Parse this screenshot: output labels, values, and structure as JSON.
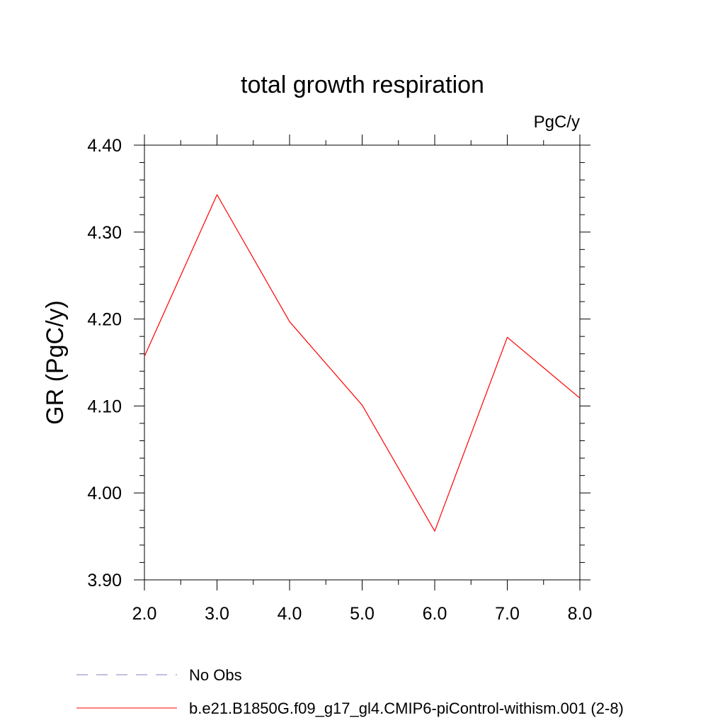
{
  "chart_data": {
    "type": "line",
    "title": "total growth respiration",
    "units_label": "PgC/y",
    "xlabel": "",
    "ylabel": "GR  (PgC/y)",
    "xlim": [
      2.0,
      8.0
    ],
    "ylim": [
      3.9,
      4.4
    ],
    "x_ticks": [
      2.0,
      3.0,
      4.0,
      5.0,
      6.0,
      7.0,
      8.0
    ],
    "x_tick_labels": [
      "2.0",
      "3.0",
      "4.0",
      "5.0",
      "6.0",
      "7.0",
      "8.0"
    ],
    "y_ticks": [
      3.9,
      4.0,
      4.1,
      4.2,
      4.3,
      4.4
    ],
    "y_tick_labels": [
      "3.90",
      "4.00",
      "4.10",
      "4.20",
      "4.30",
      "4.40"
    ],
    "x_minor_step": 0.5,
    "y_minor_step": 0.02,
    "grid": false,
    "series": [
      {
        "name": "b.e21.B1850G.f09_g17_gl4.CMIP6-piControl-withism.001 (2-8)",
        "color": "#ff0000",
        "dash": "solid",
        "x": [
          2.0,
          3.0,
          4.0,
          5.0,
          6.0,
          7.0,
          8.0
        ],
        "values": [
          4.157,
          4.343,
          4.197,
          4.101,
          3.956,
          4.179,
          4.109
        ]
      }
    ],
    "legend": {
      "placement": "bottom-left",
      "entries": [
        {
          "label": "No Obs",
          "color": "#8080c0",
          "dash": "dashed"
        },
        {
          "label": "b.e21.B1850G.f09_g17_gl4.CMIP6-piControl-withism.001 (2-8)",
          "color": "#ff0000",
          "dash": "solid"
        }
      ]
    }
  }
}
